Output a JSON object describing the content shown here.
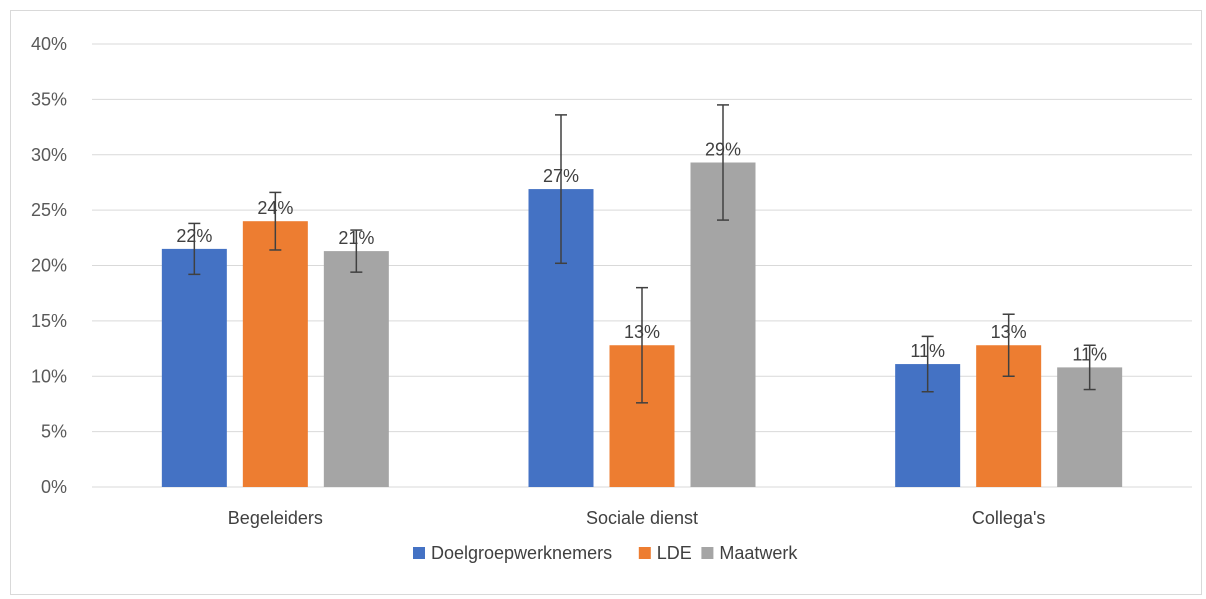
{
  "chart_data": {
    "type": "bar",
    "title": "",
    "xlabel": "",
    "ylabel": "",
    "ylim": [
      0,
      40
    ],
    "y_ticks": [
      0,
      5,
      10,
      15,
      20,
      25,
      30,
      35,
      40
    ],
    "y_tick_labels": [
      "0%",
      "5%",
      "10%",
      "15%",
      "20%",
      "25%",
      "30%",
      "35%",
      "40%"
    ],
    "grid": true,
    "legend_position": "bottom",
    "categories": [
      "Begeleiders",
      "Sociale dienst",
      "Collega's"
    ],
    "series": [
      {
        "name": "Doelgroepwerknemers",
        "color": "#4472c4",
        "values": [
          21.5,
          26.9,
          11.1
        ],
        "labels": [
          "22%",
          "27%",
          "11%"
        ],
        "err_low": [
          19.2,
          20.2,
          8.6
        ],
        "err_high": [
          23.8,
          33.6,
          13.6
        ]
      },
      {
        "name": "LDE",
        "color": "#ed7d31",
        "values": [
          24.0,
          12.8,
          12.8
        ],
        "labels": [
          "24%",
          "13%",
          "13%"
        ],
        "err_low": [
          21.4,
          7.6,
          10.0
        ],
        "err_high": [
          26.6,
          18.0,
          15.6
        ]
      },
      {
        "name": "Maatwerk",
        "color": "#a5a5a5",
        "values": [
          21.3,
          29.3,
          10.8
        ],
        "labels": [
          "21%",
          "29%",
          "11%"
        ],
        "err_low": [
          19.4,
          24.1,
          8.8
        ],
        "err_high": [
          23.2,
          34.5,
          12.8
        ]
      }
    ]
  }
}
